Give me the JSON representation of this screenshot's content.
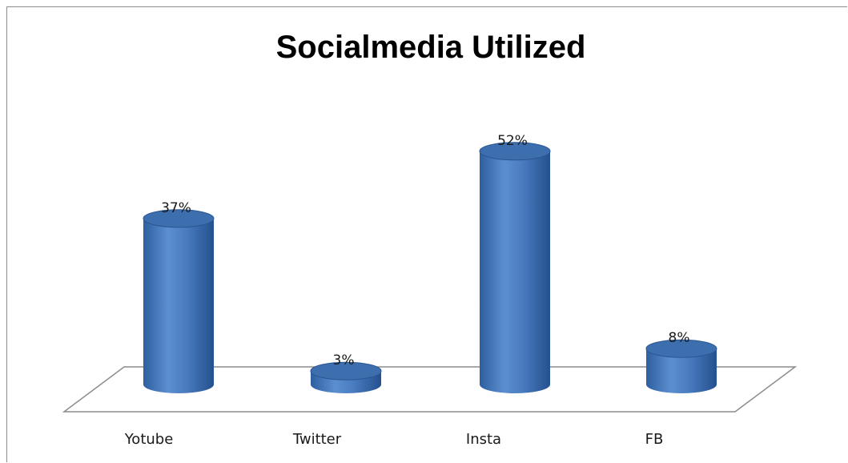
{
  "chart_data": {
    "type": "bar",
    "style": "3d-cylinder",
    "title": "Socialmedia  Utilized",
    "categories": [
      "Yotube",
      "Twitter",
      "Insta",
      "FB"
    ],
    "values": [
      37,
      3,
      52,
      8
    ],
    "value_labels": [
      "37%",
      "3%",
      "52%",
      "8%"
    ],
    "unit": "%",
    "xlabel": "",
    "ylabel": "",
    "grid": false,
    "legend": "none",
    "colors": {
      "bar": "#4f81bd",
      "bar_dark": "#2a5592",
      "bar_top": "#3d6fae",
      "floor": "#8c8c8c"
    }
  }
}
